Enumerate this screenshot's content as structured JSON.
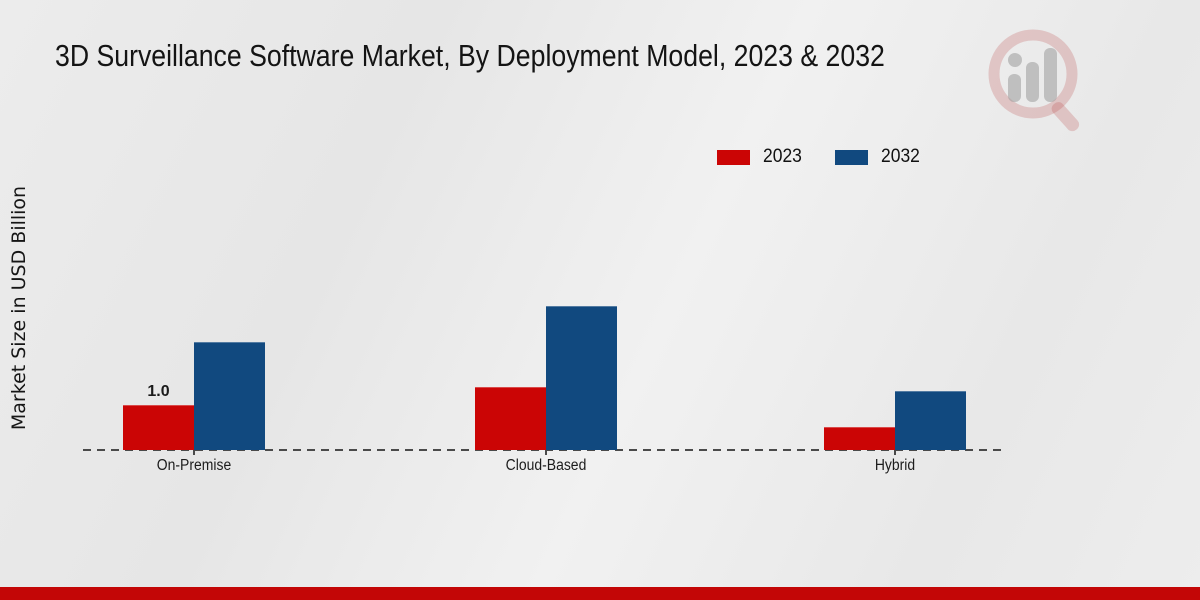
{
  "header": {
    "title": "3D Surveillance Software Market, By Deployment Model, 2023 & 2032"
  },
  "chart_data": {
    "type": "bar",
    "title": "3D Surveillance Software Market, By Deployment Model, 2023 & 2032",
    "categories": [
      "On-Premise",
      "Cloud-Based",
      "Hybrid"
    ],
    "series": [
      {
        "name": "2023",
        "color": "#cb0505",
        "values": [
          1.0,
          1.4,
          0.5
        ]
      },
      {
        "name": "2032",
        "color": "#11497f",
        "values": [
          2.4,
          3.2,
          1.3
        ]
      }
    ],
    "xlabel": "",
    "ylabel": "Market Size in USD Billion",
    "ylim": [
      0,
      3.6
    ],
    "grid": false,
    "legend_position": "top-right",
    "axis_baseline": "dashed",
    "annotations": [
      {
        "text": "1.0",
        "series_index": 0,
        "category_index": 0
      }
    ]
  },
  "watermark": {
    "name": "magnifier-bar-chart-logo",
    "ring_color": "#b43c3c",
    "bars_color": "#9b9b9b"
  },
  "footer": {
    "bar_color": "#c30606"
  }
}
